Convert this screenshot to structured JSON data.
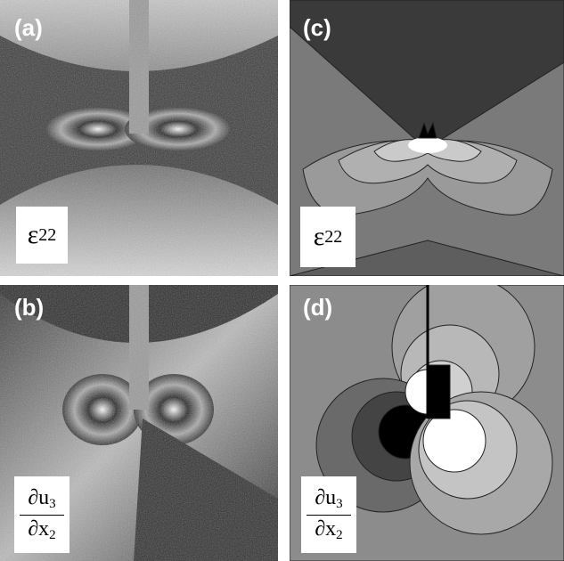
{
  "panels": [
    {
      "label": "(a)",
      "quantity": {
        "symbol": "ε",
        "subscript": "22"
      }
    },
    {
      "label": "(b)",
      "quantity": {
        "numerator": "∂u",
        "numerator_subscript": "3",
        "denominator": "∂x",
        "denominator_subscript": "2"
      }
    },
    {
      "label": "(c)",
      "quantity": {
        "symbol": "ε",
        "subscript": "22"
      }
    },
    {
      "label": "(d)",
      "quantity": {
        "numerator": "∂u",
        "numerator_subscript": "3",
        "denominator": "∂x",
        "denominator_subscript": "2"
      }
    }
  ]
}
